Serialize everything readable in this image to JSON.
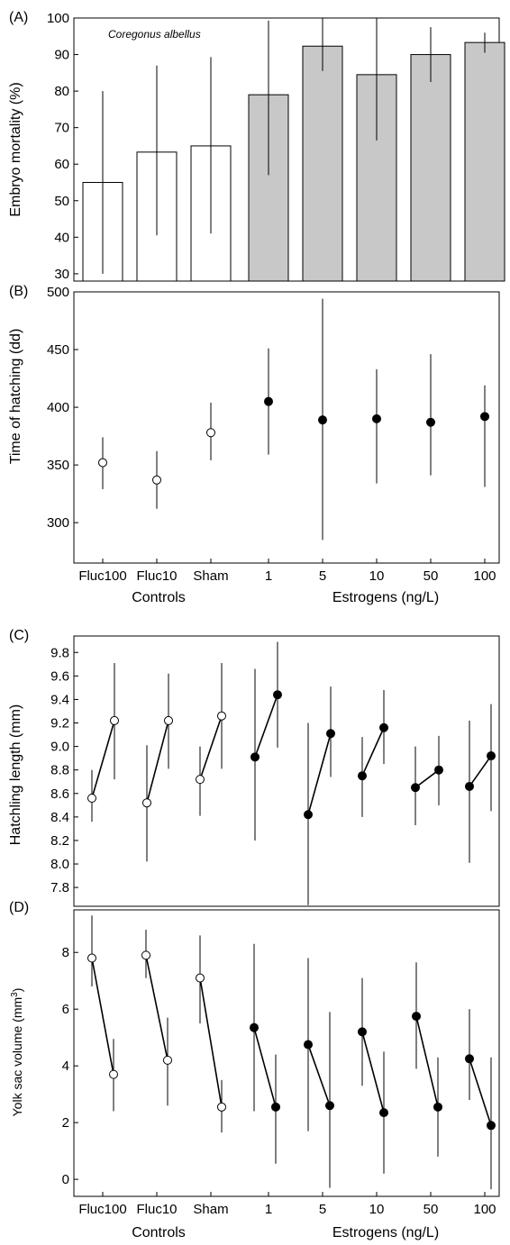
{
  "chart_data": [
    {
      "panel": "(A)",
      "type": "bar",
      "annotation": "Coregonus albellus",
      "ylabel": "Embryo mortality (%)",
      "ylim": [
        28,
        100
      ],
      "yticks": [
        "30",
        "40",
        "50",
        "60",
        "70",
        "80",
        "90",
        "100"
      ],
      "categories": [
        "Fluc100",
        "Fluc10",
        "Sham",
        "1",
        "5",
        "10",
        "50",
        "100"
      ],
      "values": [
        55,
        63.3,
        65,
        79,
        92.3,
        84.5,
        90,
        93.3
      ],
      "err_low": [
        30,
        40.5,
        41,
        57,
        85.5,
        66.5,
        82.5,
        90.5
      ],
      "err_high": [
        80,
        87,
        89.3,
        99.3,
        100,
        100,
        97.5,
        96
      ],
      "colors": [
        "#ffffff",
        "#ffffff",
        "#ffffff",
        "#c8c8c8",
        "#c8c8c8",
        "#c8c8c8",
        "#c8c8c8",
        "#c8c8c8"
      ]
    },
    {
      "panel": "(B)",
      "type": "scatter",
      "ylabel": "Time of hatching (dd)",
      "ylim": [
        265,
        500
      ],
      "yticks": [
        "300",
        "350",
        "400",
        "450",
        "500"
      ],
      "categories": [
        "Fluc100",
        "Fluc10",
        "Sham",
        "1",
        "5",
        "10",
        "50",
        "100"
      ],
      "values": [
        352,
        337,
        378,
        405,
        389,
        390,
        387,
        392
      ],
      "err_low": [
        329,
        312,
        354,
        359,
        285,
        334,
        341,
        331
      ],
      "err_high": [
        374,
        362,
        404,
        451,
        494,
        433,
        446,
        419
      ],
      "filled": [
        false,
        false,
        false,
        true,
        true,
        true,
        true,
        true
      ],
      "group_labels": [
        "Controls",
        "Estrogens (ng/L)"
      ]
    },
    {
      "panel": "(C)",
      "type": "line",
      "ylabel": "Hatchling length (mm)",
      "ylim": [
        7.64,
        9.94
      ],
      "yticks": [
        "7.8",
        "8.0",
        "8.2",
        "8.4",
        "8.6",
        "8.8",
        "9.0",
        "9.2",
        "9.4",
        "9.6",
        "9.8"
      ],
      "categories": [
        "Fluc100",
        "Fluc10",
        "Sham",
        "1",
        "5",
        "10",
        "50",
        "100"
      ],
      "series": [
        {
          "values": [
            8.56,
            8.52,
            8.72,
            8.91,
            8.42,
            8.75,
            8.65,
            8.66
          ],
          "err_low": [
            8.36,
            8.02,
            8.41,
            8.2,
            7.65,
            8.4,
            8.33,
            8.01
          ],
          "err_high": [
            8.8,
            9.01,
            9.0,
            9.66,
            9.2,
            9.08,
            9.0,
            9.22
          ]
        },
        {
          "values": [
            9.22,
            9.22,
            9.26,
            9.44,
            9.11,
            9.16,
            8.8,
            8.92
          ],
          "err_low": [
            8.72,
            8.81,
            8.81,
            8.99,
            8.74,
            8.85,
            8.5,
            8.45
          ],
          "err_high": [
            9.71,
            9.62,
            9.71,
            9.89,
            9.51,
            9.48,
            9.09,
            9.36
          ]
        }
      ],
      "filled": [
        false,
        false,
        false,
        true,
        true,
        true,
        true,
        true
      ]
    },
    {
      "panel": "(D)",
      "type": "line",
      "ylabel": "Yolk sac volume (mm",
      "ylabel_sup": "3",
      "ylabel_end": ")",
      "ylim": [
        -0.6,
        9.5
      ],
      "yticks": [
        "0",
        "2",
        "4",
        "6",
        "8"
      ],
      "categories": [
        "Fluc100",
        "Fluc10",
        "Sham",
        "1",
        "5",
        "10",
        "50",
        "100"
      ],
      "series": [
        {
          "values": [
            7.8,
            7.9,
            7.1,
            5.35,
            4.75,
            5.2,
            5.75,
            4.25
          ],
          "err_low": [
            6.8,
            7.1,
            5.5,
            2.4,
            1.7,
            3.3,
            3.9,
            2.8
          ],
          "err_high": [
            9.3,
            8.8,
            8.6,
            8.3,
            7.8,
            7.1,
            7.65,
            6.0
          ]
        },
        {
          "values": [
            3.7,
            4.2,
            2.55,
            2.55,
            2.6,
            2.35,
            2.55,
            1.9
          ],
          "err_low": [
            2.4,
            2.6,
            1.65,
            0.55,
            -0.3,
            0.2,
            0.8,
            -0.35
          ],
          "err_high": [
            4.95,
            5.7,
            3.5,
            4.4,
            5.9,
            4.5,
            4.3,
            4.3
          ]
        }
      ],
      "filled": [
        false,
        false,
        false,
        true,
        true,
        true,
        true,
        true
      ],
      "group_labels": [
        "Controls",
        "Estrogens (ng/L)"
      ]
    }
  ]
}
